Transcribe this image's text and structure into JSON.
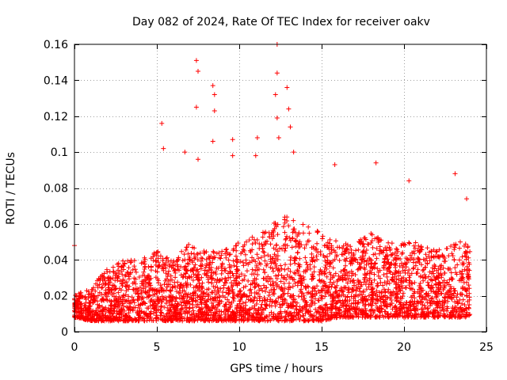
{
  "chart_data": {
    "type": "scatter",
    "title": "Day 082 of 2024, Rate Of TEC Index for receiver oakv",
    "xlabel": "GPS time / hours",
    "ylabel": "ROTI / TECUs",
    "xlim": [
      0,
      25
    ],
    "ylim": [
      0,
      0.16
    ],
    "xticks": [
      0,
      5,
      10,
      15,
      20,
      25
    ],
    "yticks": [
      0,
      0.02,
      0.04,
      0.06,
      0.08,
      0.1,
      0.12,
      0.14,
      0.16
    ],
    "xtick_labels": [
      "0",
      "5",
      "10",
      "15",
      "20",
      "25"
    ],
    "ytick_labels": [
      "0",
      "0.02",
      "0.04",
      "0.06",
      "0.08",
      "0.1",
      "0.12",
      "0.14",
      "0.16"
    ],
    "grid": true,
    "marker": "+",
    "color": "#ff0000",
    "data_extent_hours": [
      0,
      24
    ],
    "envelope": {
      "description": "Dense band of ROTI values; typical range 0.005–0.05 TECU/min with spikes",
      "hours": [
        0,
        1,
        2,
        3,
        4,
        5,
        6,
        7,
        8,
        9,
        10,
        11,
        12,
        13,
        14,
        15,
        16,
        17,
        18,
        19,
        20,
        21,
        22,
        23,
        24
      ],
      "typical_low": [
        0.008,
        0.006,
        0.006,
        0.006,
        0.006,
        0.006,
        0.006,
        0.006,
        0.006,
        0.006,
        0.006,
        0.006,
        0.006,
        0.006,
        0.006,
        0.006,
        0.008,
        0.008,
        0.008,
        0.008,
        0.008,
        0.008,
        0.008,
        0.008,
        0.008
      ],
      "typical_high": [
        0.02,
        0.025,
        0.035,
        0.04,
        0.04,
        0.045,
        0.04,
        0.05,
        0.045,
        0.045,
        0.05,
        0.055,
        0.06,
        0.065,
        0.06,
        0.055,
        0.05,
        0.05,
        0.055,
        0.05,
        0.05,
        0.05,
        0.045,
        0.05,
        0.05
      ]
    },
    "notable_peaks": [
      {
        "x": 0.0,
        "y": 0.048
      },
      {
        "x": 5.3,
        "y": 0.116
      },
      {
        "x": 5.4,
        "y": 0.102
      },
      {
        "x": 6.7,
        "y": 0.1
      },
      {
        "x": 7.4,
        "y": 0.151
      },
      {
        "x": 7.5,
        "y": 0.145
      },
      {
        "x": 7.4,
        "y": 0.125
      },
      {
        "x": 7.5,
        "y": 0.096
      },
      {
        "x": 8.4,
        "y": 0.137
      },
      {
        "x": 8.5,
        "y": 0.132
      },
      {
        "x": 8.5,
        "y": 0.123
      },
      {
        "x": 8.4,
        "y": 0.106
      },
      {
        "x": 9.6,
        "y": 0.107
      },
      {
        "x": 9.6,
        "y": 0.098
      },
      {
        "x": 11.1,
        "y": 0.108
      },
      {
        "x": 11.0,
        "y": 0.098
      },
      {
        "x": 12.3,
        "y": 0.16
      },
      {
        "x": 12.3,
        "y": 0.144
      },
      {
        "x": 12.2,
        "y": 0.132
      },
      {
        "x": 12.3,
        "y": 0.119
      },
      {
        "x": 12.4,
        "y": 0.108
      },
      {
        "x": 12.9,
        "y": 0.136
      },
      {
        "x": 13.0,
        "y": 0.124
      },
      {
        "x": 13.1,
        "y": 0.114
      },
      {
        "x": 13.3,
        "y": 0.1
      },
      {
        "x": 15.8,
        "y": 0.093
      },
      {
        "x": 18.3,
        "y": 0.094
      },
      {
        "x": 20.3,
        "y": 0.084
      },
      {
        "x": 23.1,
        "y": 0.088
      },
      {
        "x": 23.8,
        "y": 0.074
      }
    ]
  }
}
